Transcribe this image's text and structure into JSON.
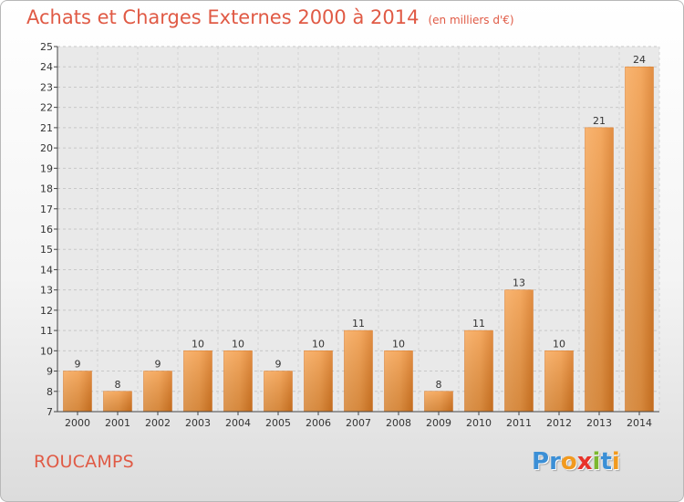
{
  "header": {
    "title": "Achats et Charges Externes 2000 à 2014",
    "subtitle": "(en milliers d'€)"
  },
  "footer": {
    "commune": "ROUCAMPS",
    "logo_letters": [
      {
        "char": "P",
        "color": "#3b8fd6"
      },
      {
        "char": "r",
        "color": "#3b8fd6"
      },
      {
        "char": "o",
        "color": "#f29a1f"
      },
      {
        "char": "x",
        "color": "#e8332a"
      },
      {
        "char": "i",
        "color": "#7cb82f"
      },
      {
        "char": "t",
        "color": "#3b8fd6"
      },
      {
        "char": "i",
        "color": "#f29a1f"
      }
    ]
  },
  "chart_data": {
    "type": "bar",
    "title": "Achats et Charges Externes 2000 à 2014",
    "subtitle": "(en milliers d'€)",
    "categories": [
      "2000",
      "2001",
      "2002",
      "2003",
      "2004",
      "2005",
      "2006",
      "2007",
      "2008",
      "2009",
      "2010",
      "2011",
      "2012",
      "2013",
      "2014"
    ],
    "values": [
      9,
      8,
      9,
      10,
      10,
      9,
      10,
      11,
      10,
      8,
      11,
      13,
      10,
      21,
      24
    ],
    "xlabel": "",
    "ylabel": "",
    "ylim": [
      7,
      25
    ],
    "yticks": [
      7,
      8,
      9,
      10,
      11,
      12,
      13,
      14,
      15,
      16,
      17,
      18,
      19,
      20,
      21,
      22,
      23,
      24,
      25
    ],
    "grid": true,
    "bar_color": "#f0902f",
    "data_labels": true
  }
}
